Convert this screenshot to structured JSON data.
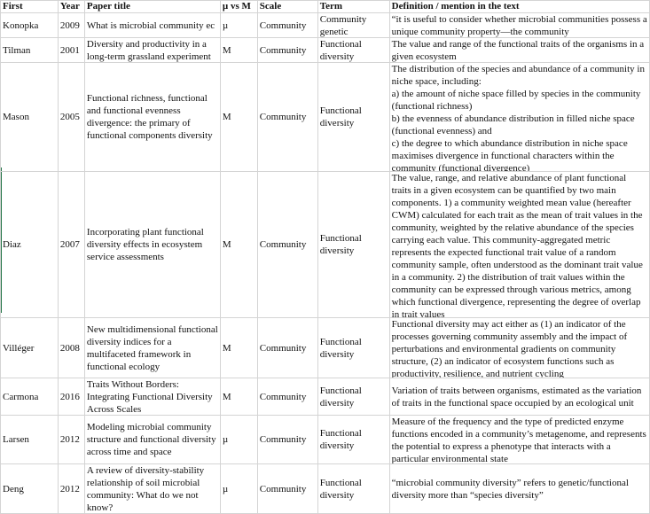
{
  "columns": [
    "First",
    "Year",
    "Paper title",
    "µ vs M",
    "Scale",
    "Term",
    "Definition / mention in the text"
  ],
  "rows": [
    {
      "first": "Konopka",
      "year": "2009",
      "title": "What is microbial community ec",
      "mu_vs_m": "µ",
      "scale": "Community",
      "term": "Community genetic",
      "definition": "“it is useful to consider whether microbial communities possess a unique community property—the community"
    },
    {
      "first": "Tilman",
      "year": "2001",
      "title": "Diversity and productivity in a long-term grassland experiment",
      "mu_vs_m": "M",
      "scale": "Community",
      "term": "Functional diversity",
      "definition": "The value and range of the functional traits of the organisms in a given ecosystem"
    },
    {
      "first": "Mason",
      "year": "2005",
      "title": "Functional richness, functional and functional evenness divergence: the primary of functional components diversity",
      "mu_vs_m": "M",
      "scale": "Community",
      "term": "Functional diversity",
      "definition": "The distribution of the species and abundance of a community in niche space, including:\na) the amount of niche space filled by species in the community (functional richness)\nb) the evenness of abundance distribution in filled niche space (functional evenness) and\nc) the degree to which abundance distribution in niche space maximises divergence in functional characters within the community (functional divergence)"
    },
    {
      "first": "Diaz",
      "year": "2007",
      "title": "Incorporating plant functional diversity effects in ecosystem service assessments",
      "mu_vs_m": "M",
      "scale": "Community",
      "term": "Functional diversity",
      "definition": "The value, range, and relative abundance of plant functional traits in a given ecosystem can be quantified by two main components. 1) a community weighted mean value (hereafter CWM) calculated for each trait as the mean of trait values in the community, weighted by the relative abundance of the species carrying each value. This community-aggregated metric represents the expected functional trait value of a random community sample, often understood as the dominant trait value in a community. 2) the distribution of trait values within the community can be expressed through various metrics, among which functional divergence, representing the degree of overlap in trait values"
    },
    {
      "first": "Villéger",
      "year": "2008",
      "title": "New multidimensional functional diversity indices for a multifaceted framework in functional ecology",
      "mu_vs_m": "M",
      "scale": "Community",
      "term": "Functional diversity",
      "definition": "Functional diversity may act either as (1) an indicator of the processes governing community assembly and the impact of perturbations and environmental gradients on community structure, (2) an indicator of ecosystem functions such as productivity, resilience, and nutrient cycling"
    },
    {
      "first": "Carmona",
      "year": "2016",
      "title": "Traits Without Borders: Integrating Functional Diversity Across Scales",
      "mu_vs_m": "M",
      "scale": "Community",
      "term": "Functional diversity",
      "definition": "Variation of traits between organisms, estimated as the variation of traits in the functional space occupied by an ecological unit"
    },
    {
      "first": "Larsen",
      "year": "2012",
      "title": "Modeling microbial community structure and functional diversity across time and space",
      "mu_vs_m": "µ",
      "scale": "Community",
      "term": "Functional diversity",
      "definition": "Measure of the frequency and the type of predicted enzyme functions encoded in a community’s metagenome, and represents the potential to express a phenotype that interacts with a particular environmental state"
    },
    {
      "first": "Deng",
      "year": "2012",
      "title": "A review of diversity-stability relationship of soil microbial community: What do we not know?",
      "mu_vs_m": "µ",
      "scale": "Community",
      "term": "Functional diversity",
      "definition": "“microbial community diversity” refers to genetic/functional diversity more than “species diversity”"
    }
  ],
  "colors": {
    "gridline": "#d4d4d4",
    "selection_border": "#217346"
  }
}
